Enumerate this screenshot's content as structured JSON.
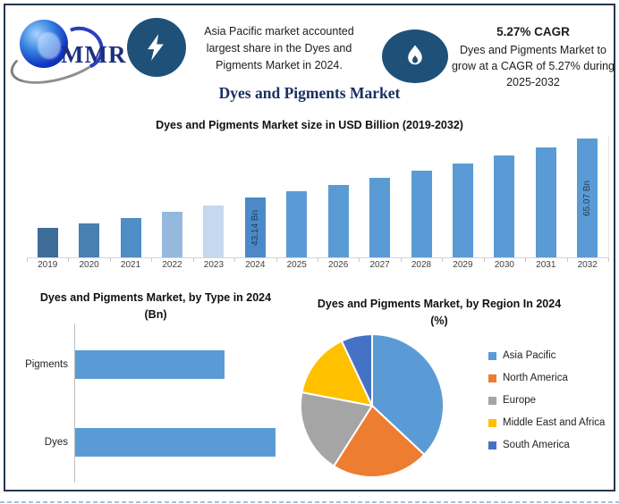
{
  "header": {
    "logo_text": "MMR",
    "highlight": "Asia Pacific market accounted largest share in the Dyes and Pigments Market in 2024.",
    "cagr_title": "5.27% CAGR",
    "cagr_text": "Dyes and Pigments Market to grow at a CAGR of 5.27% during 2025-2032",
    "icon_left": "lightning-icon",
    "icon_right": "flame-icon",
    "icon_bg_color": "#1F5078"
  },
  "main_title": "Dyes and Pigments Market",
  "accent_colors": {
    "title_navy": "#1B2F63",
    "frame_border": "#22374E",
    "primary_blue": "#5B9BD5"
  },
  "chart_data": [
    {
      "type": "bar",
      "title": "Dyes and Pigments Market size in USD Billion (2019-2032)",
      "categories": [
        "2019",
        "2020",
        "2021",
        "2022",
        "2023",
        "2024",
        "2025",
        "2026",
        "2027",
        "2028",
        "2029",
        "2030",
        "2031",
        "2032"
      ],
      "values": [
        32.0,
        33.6,
        35.4,
        38.0,
        40.2,
        43.14,
        45.41,
        47.81,
        50.33,
        52.98,
        55.77,
        58.71,
        61.8,
        65.07
      ],
      "bar_labels": [
        {
          "category": "2024",
          "label": "43.14 Bn"
        },
        {
          "category": "2032",
          "label": "65.07 Bn"
        }
      ],
      "bar_colors": [
        "#3E6C99",
        "#4681B2",
        "#4E8DC5",
        "#94B9DD",
        "#C5D8EE",
        "#4C89C8",
        "#5B9BD5",
        "#5B9BD5",
        "#5B9BD5",
        "#5B9BD5",
        "#5B9BD5",
        "#5B9BD5",
        "#5B9BD5",
        "#5B9BD5"
      ],
      "xlabel": "",
      "ylabel": "",
      "y_axis_visible": false,
      "grid": false,
      "y_baseline_estimate_bn": 20.9
    },
    {
      "type": "bar",
      "orientation": "horizontal",
      "title": "Dyes and Pigments Market, by Type in 2024 (Bn)",
      "categories": [
        "Pigments",
        "Dyes"
      ],
      "values": [
        18.4,
        24.7
      ],
      "color": "#5B9BD5",
      "x_axis_visible": false,
      "grid": false
    },
    {
      "type": "pie",
      "title": "Dyes and Pigments Market, by Region In 2024 (%)",
      "slices": [
        {
          "label": "Asia Pacific",
          "value": 37,
          "color": "#5B9BD5"
        },
        {
          "label": "North America",
          "value": 22,
          "color": "#ED7D31"
        },
        {
          "label": "Europe",
          "value": 19,
          "color": "#A5A5A5"
        },
        {
          "label": "Middle East and Africa",
          "value": 15,
          "color": "#FFC000"
        },
        {
          "label": "South America",
          "value": 7,
          "color": "#4472C4"
        }
      ],
      "start_angle_deg": 0,
      "direction": "clockwise",
      "legend_position": "right",
      "legend_marker": "square"
    }
  ]
}
